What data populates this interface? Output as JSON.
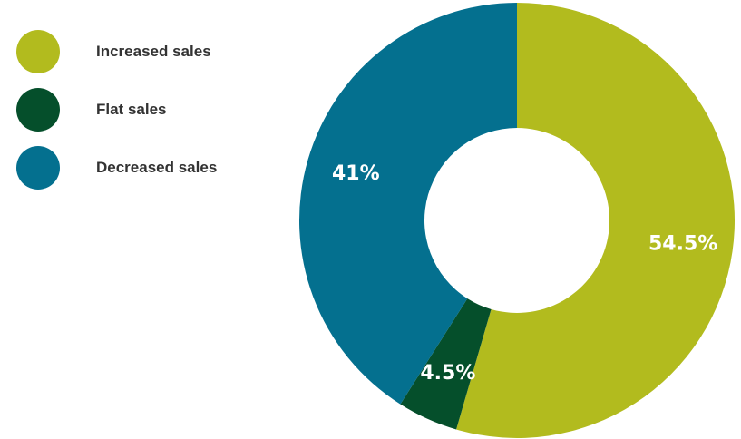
{
  "chart_data": {
    "type": "pie",
    "title": "",
    "categories": [
      "Increased sales",
      "Flat sales",
      "Decreased sales"
    ],
    "values": [
      54.5,
      4.5,
      41
    ],
    "labels": [
      "54.5%",
      "4.5%",
      "41%"
    ],
    "colors": [
      "#b2bb1e",
      "#054f2b",
      "#04708f"
    ],
    "legend": "top-left"
  }
}
